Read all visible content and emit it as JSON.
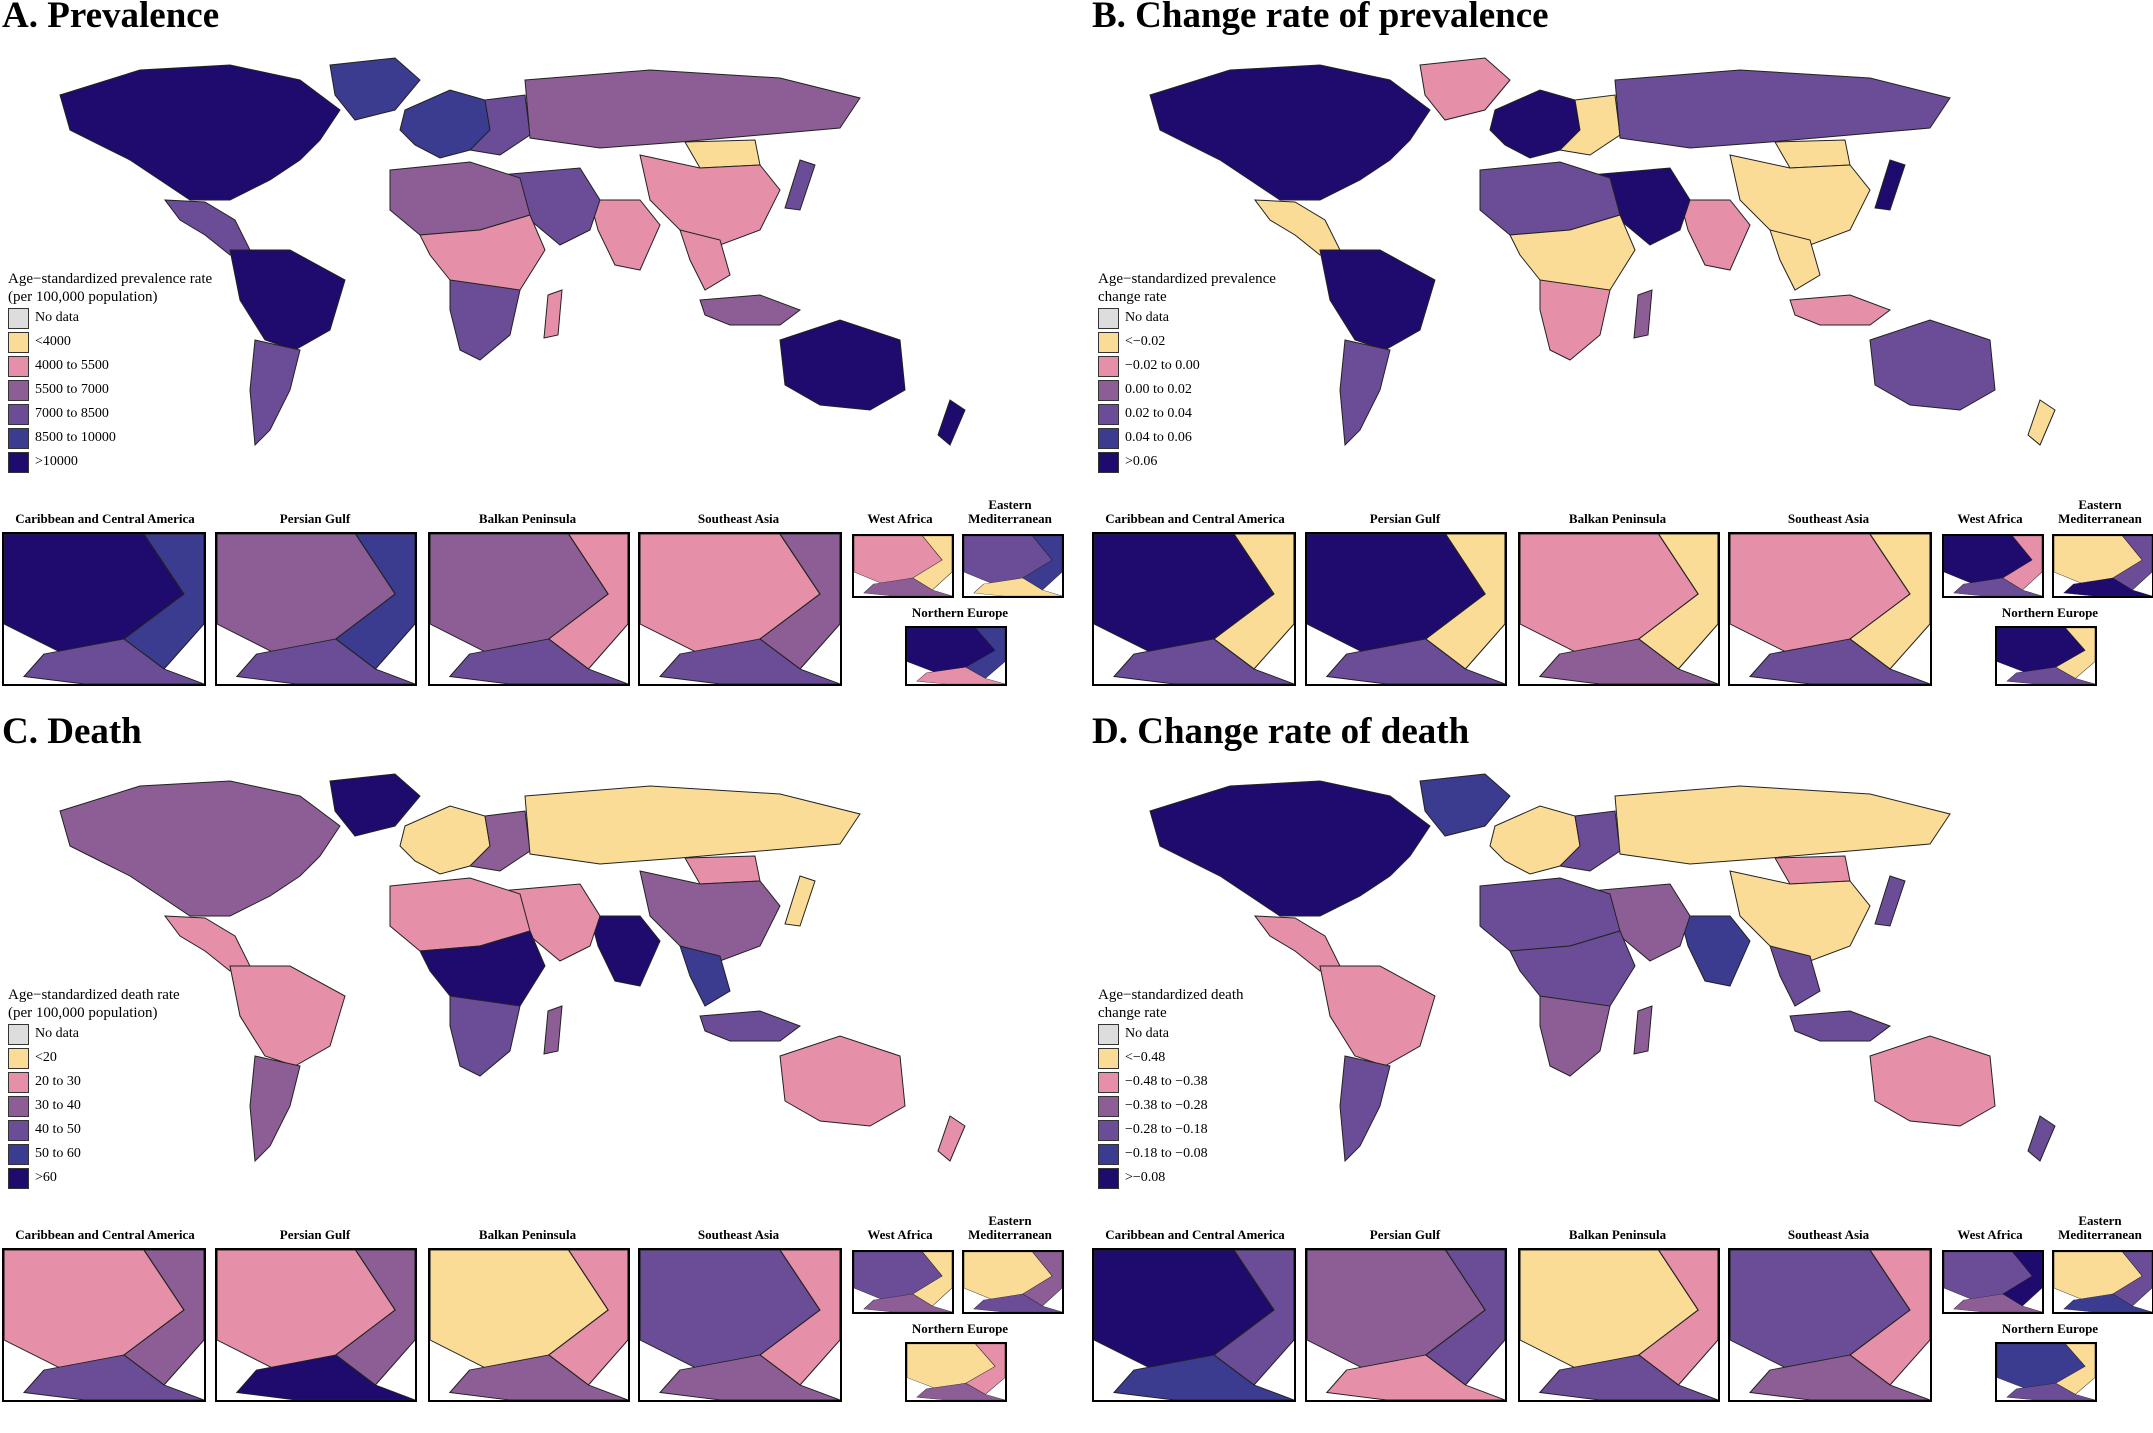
{
  "colors": {
    "nodata": "#dddddd",
    "c1": "#fbdc97",
    "c2": "#e68fa8",
    "c3": "#8c5e95",
    "c4": "#6a4d96",
    "c5": "#3b3b8f",
    "c6": "#1f0a6e"
  },
  "insets": {
    "caribbean": "Caribbean and Central America",
    "persian": "Persian Gulf",
    "balkan": "Balkan Peninsula",
    "seasia": "Southeast Asia",
    "westafrica": "West Africa",
    "eastmed": "Eastern\nMediterranean",
    "northeu": "Northern Europe"
  },
  "panels": [
    {
      "id": "A",
      "title": "A. Prevalence",
      "legend_title": "Age−standardized prevalence rate\n(per 100,000 population)",
      "legend": [
        "No data",
        "<4000",
        "4000 to 5500",
        "5500 to 7000",
        "7000 to 8500",
        "8500 to 10000",
        ">10000"
      ],
      "regions": {
        "north_america": 6,
        "greenland": 5,
        "central_america": 4,
        "south_america_n": 6,
        "south_america_s": 4,
        "europe_w": 5,
        "europe_e": 4,
        "russia": 3,
        "mongolia": 1,
        "china": 2,
        "india": 2,
        "middle_east": 4,
        "africa_n": 3,
        "africa_c": 2,
        "africa_s": 4,
        "madagascar": 2,
        "se_asia": 2,
        "indonesia": 3,
        "japan": 4,
        "australia": 6,
        "new_zealand": 6
      },
      "inset_colors": {
        "caribbean": [
          6,
          5,
          4
        ],
        "persian": [
          3,
          5,
          4
        ],
        "balkan": [
          3,
          2,
          4
        ],
        "seasia": [
          2,
          3,
          4
        ],
        "westafrica": [
          2,
          1,
          3
        ],
        "eastmed": [
          4,
          5,
          1
        ],
        "northeu": [
          6,
          5,
          2
        ]
      }
    },
    {
      "id": "B",
      "title": "B. Change rate of prevalence",
      "legend_title": "Age−standardized prevalence\nchange rate",
      "legend": [
        "No data",
        "<−0.02",
        "−0.02 to 0.00",
        "0.00 to 0.02",
        "0.02 to 0.04",
        "0.04 to 0.06",
        ">0.06"
      ],
      "regions": {
        "north_america": 6,
        "greenland": 2,
        "central_america": 1,
        "south_america_n": 6,
        "south_america_s": 4,
        "europe_w": 6,
        "europe_e": 1,
        "russia": 4,
        "mongolia": 1,
        "china": 1,
        "india": 2,
        "middle_east": 6,
        "africa_n": 4,
        "africa_c": 1,
        "africa_s": 2,
        "madagascar": 3,
        "se_asia": 1,
        "indonesia": 2,
        "japan": 6,
        "australia": 4,
        "new_zealand": 1
      },
      "inset_colors": {
        "caribbean": [
          6,
          1,
          4
        ],
        "persian": [
          6,
          1,
          4
        ],
        "balkan": [
          2,
          1,
          3
        ],
        "seasia": [
          2,
          1,
          4
        ],
        "westafrica": [
          6,
          2,
          4
        ],
        "eastmed": [
          1,
          4,
          6
        ],
        "northeu": [
          6,
          1,
          4
        ]
      }
    },
    {
      "id": "C",
      "title": "C. Death",
      "legend_title": "Age−standardized death rate\n(per 100,000 population)",
      "legend": [
        "No data",
        "<20",
        "20 to 30",
        "30 to 40",
        "40 to 50",
        "50 to 60",
        ">60"
      ],
      "regions": {
        "north_america": 3,
        "greenland": 6,
        "central_america": 2,
        "south_america_n": 2,
        "south_america_s": 3,
        "europe_w": 1,
        "europe_e": 3,
        "russia": 1,
        "mongolia": 2,
        "china": 3,
        "india": 6,
        "middle_east": 2,
        "africa_n": 2,
        "africa_c": 6,
        "africa_s": 4,
        "madagascar": 3,
        "se_asia": 5,
        "indonesia": 4,
        "japan": 1,
        "australia": 2,
        "new_zealand": 2
      },
      "inset_colors": {
        "caribbean": [
          2,
          3,
          4
        ],
        "persian": [
          2,
          3,
          6
        ],
        "balkan": [
          1,
          2,
          3
        ],
        "seasia": [
          4,
          2,
          3
        ],
        "westafrica": [
          4,
          1,
          3
        ],
        "eastmed": [
          1,
          3,
          4
        ],
        "northeu": [
          1,
          2,
          3
        ]
      }
    },
    {
      "id": "D",
      "title": "D. Change rate of death",
      "legend_title": "Age−standardized death\nchange rate",
      "legend": [
        "No data",
        "<−0.48",
        "−0.48 to −0.38",
        "−0.38 to −0.28",
        "−0.28 to −0.18",
        "−0.18 to −0.08",
        ">−0.08"
      ],
      "regions": {
        "north_america": 6,
        "greenland": 5,
        "central_america": 2,
        "south_america_n": 2,
        "south_america_s": 4,
        "europe_w": 1,
        "europe_e": 4,
        "russia": 1,
        "mongolia": 2,
        "china": 1,
        "india": 5,
        "middle_east": 3,
        "africa_n": 4,
        "africa_c": 4,
        "africa_s": 3,
        "madagascar": 3,
        "se_asia": 4,
        "indonesia": 4,
        "japan": 4,
        "australia": 2,
        "new_zealand": 4
      },
      "inset_colors": {
        "caribbean": [
          6,
          4,
          5
        ],
        "persian": [
          3,
          4,
          2
        ],
        "balkan": [
          1,
          2,
          4
        ],
        "seasia": [
          4,
          2,
          3
        ],
        "westafrica": [
          4,
          6,
          3
        ],
        "eastmed": [
          1,
          4,
          5
        ],
        "northeu": [
          5,
          1,
          4
        ]
      }
    }
  ]
}
